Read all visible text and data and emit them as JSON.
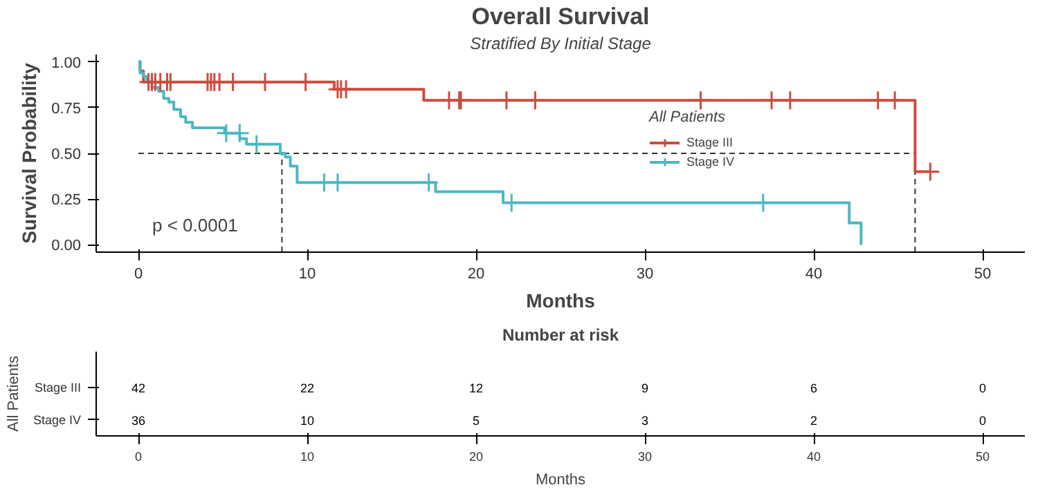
{
  "chart_data": [
    {
      "type": "step",
      "title": "Overall Survival",
      "subtitle": "Stratified By Initial Stage",
      "xlabel": "Months",
      "ylabel": "Survival Probability",
      "legend_title": "All Patients",
      "legend": "top right",
      "grid": false,
      "marker": "none",
      "line_style": "solid",
      "xlim": [
        -2.5,
        52.5
      ],
      "xticks": [
        0,
        10,
        20,
        30,
        40,
        50
      ],
      "ylim": [
        -0.04,
        1.04
      ],
      "yticks": [
        {
          "value": 0,
          "label": "0.00"
        },
        {
          "value": 0.25,
          "label": "0.25"
        },
        {
          "value": 0.5,
          "label": "0.50"
        },
        {
          "value": 0.75,
          "label": "0.75"
        },
        {
          "value": 1,
          "label": "1.00"
        }
      ],
      "ref_lines": [
        {
          "axis": "y",
          "value": 0.5,
          "line_style": "dashed",
          "color": "#333333"
        },
        {
          "axis": "x",
          "value": 8.5,
          "line_style": "dashed",
          "color": "#333333"
        },
        {
          "axis": "x",
          "value": 46,
          "line_style": "dashed",
          "color": "#333333"
        }
      ],
      "annotations": [
        "p < 0.0001"
      ],
      "series": [
        {
          "name": "Stage III",
          "color": "#cc4c3f",
          "x": [
            0,
            0.1,
            0.3,
            11.6,
            16.9,
            46.0,
            46.9
          ],
          "values": [
            1.0,
            0.95,
            0.89,
            0.85,
            0.79,
            0.4,
            0.4
          ]
        },
        {
          "name": "Stage IV",
          "color": "#4ab8c4",
          "x": [
            0,
            0.1,
            0.3,
            0.5,
            0.8,
            1.2,
            1.5,
            1.8,
            2.1,
            2.5,
            2.8,
            3.2,
            5.1,
            6.0,
            6.4,
            8.4,
            8.7,
            9.0,
            9.4,
            17.6,
            21.6,
            42.1,
            42.8
          ],
          "values": [
            1.0,
            0.94,
            0.92,
            0.89,
            0.86,
            0.84,
            0.8,
            0.78,
            0.74,
            0.7,
            0.67,
            0.64,
            0.61,
            0.58,
            0.55,
            0.5,
            0.48,
            0.43,
            0.34,
            0.29,
            0.23,
            0.12,
            0
          ]
        },
        {
          "type": "scatter",
          "marker": "cross",
          "color": "#cc4c3f",
          "x": [
            0.6,
            0.8,
            1.0,
            1.3,
            1.7,
            1.9,
            4.1,
            4.3,
            4.5,
            4.8,
            5.6,
            7.5,
            9.9,
            11.8,
            12.0,
            12.3,
            18.4,
            19.0,
            19.1,
            21.8,
            23.5,
            33.3,
            37.5,
            38.6,
            43.8,
            44.8,
            46.9
          ],
          "values": [
            0.89,
            0.89,
            0.89,
            0.89,
            0.89,
            0.89,
            0.89,
            0.89,
            0.89,
            0.89,
            0.89,
            0.89,
            0.89,
            0.85,
            0.85,
            0.85,
            0.79,
            0.79,
            0.79,
            0.79,
            0.79,
            0.79,
            0.79,
            0.79,
            0.79,
            0.79,
            0.4
          ]
        },
        {
          "type": "scatter",
          "marker": "cross",
          "color": "#4ab8c4",
          "x": [
            5.2,
            6.0,
            7.0,
            11.0,
            11.8,
            17.2,
            22.1,
            37.0
          ],
          "values": [
            0.61,
            0.61,
            0.55,
            0.34,
            0.34,
            0.34,
            0.23,
            0.23
          ]
        }
      ]
    },
    {
      "type": "heatmap",
      "title": "Number at risk",
      "xlabel": "Months",
      "ylabel": "All Patients",
      "categories": [
        "0",
        "10",
        "20",
        "30",
        "40",
        "50"
      ],
      "y_categories": [
        "Stage III",
        "Stage IV"
      ],
      "cells": [
        [
          42,
          22,
          12,
          9,
          6,
          0
        ],
        [
          36,
          10,
          5,
          3,
          2,
          0
        ]
      ],
      "data_labels": true
    }
  ]
}
